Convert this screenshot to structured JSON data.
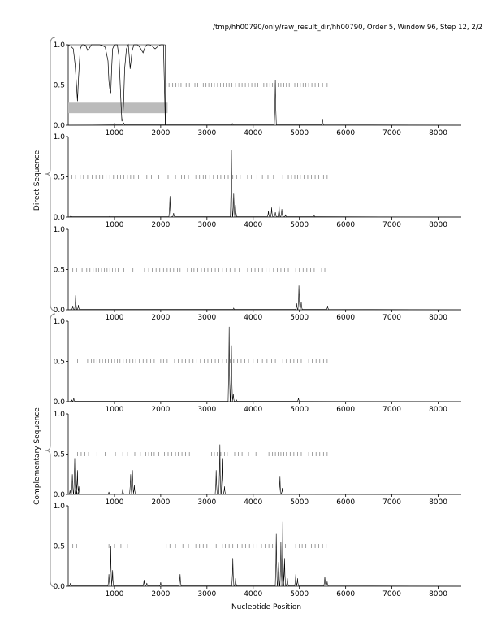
{
  "header": {
    "title": "/tmp/hh00790/only/raw_result_dir/hh00790, Order 5, Window 96, Step 12, 2/2"
  },
  "labels": {
    "direct": "Direct Sequence",
    "complementary": "Complementary Sequence",
    "xlabel": "Nucleotide Position"
  },
  "colors": {
    "line": "#000000",
    "tick_marks": "#777777",
    "highlight_band": "#bbbbbb",
    "brace": "#888888"
  },
  "chart_data": [
    {
      "type": "line",
      "group": "direct",
      "xlim": [
        0,
        8500
      ],
      "ylim": [
        0,
        1
      ],
      "xticks": [
        1000,
        2000,
        3000,
        4000,
        5000,
        6000,
        7000,
        8000
      ],
      "yticks": [
        0.0,
        0.5,
        1.0
      ],
      "ytick_labels": [
        "0.0",
        "0.5",
        "1.0"
      ],
      "inset": {
        "x": [
          0,
          60,
          110,
          150,
          180,
          200,
          220,
          260,
          300,
          340,
          380,
          420,
          460,
          500,
          560,
          620,
          680,
          740,
          800,
          860,
          880,
          900,
          920,
          940,
          960,
          1000,
          1060,
          1100,
          1140,
          1160,
          1180,
          1200,
          1220,
          1260,
          1300,
          1320,
          1340,
          1380,
          1420,
          1460,
          1500,
          1560,
          1620,
          1660,
          1700,
          1760,
          1820,
          1880,
          1940,
          2000,
          2060,
          2100
        ],
        "y": [
          1.0,
          0.98,
          0.95,
          0.75,
          0.5,
          0.3,
          0.55,
          0.95,
          1.0,
          1.0,
          0.99,
          0.93,
          0.96,
          1.0,
          1.0,
          1.0,
          1.0,
          0.99,
          0.97,
          0.8,
          0.55,
          0.45,
          0.4,
          0.7,
          0.95,
          1.0,
          1.0,
          0.85,
          0.3,
          0.05,
          0.08,
          0.3,
          0.7,
          0.95,
          1.0,
          0.85,
          0.7,
          0.92,
          1.0,
          1.0,
          1.0,
          0.96,
          0.9,
          0.97,
          1.0,
          1.0,
          0.98,
          0.95,
          0.98,
          1.0,
          1.0,
          0.0
        ],
        "band": [
          0.15,
          0.28
        ],
        "band_x": [
          0,
          2150
        ]
      },
      "peaks": [
        [
          1000,
          0.02
        ],
        [
          1200,
          0.03
        ],
        [
          3550,
          0.02
        ],
        [
          4480,
          0.56
        ],
        [
          5500,
          0.08
        ]
      ],
      "ticks_x": [
        2120,
        2180,
        2260,
        2330,
        2390,
        2440,
        2500,
        2550,
        2620,
        2680,
        2740,
        2800,
        2870,
        2920,
        2980,
        3040,
        3100,
        3160,
        3230,
        3290,
        3360,
        3420,
        3480,
        3540,
        3620,
        3690,
        3760,
        3830,
        3900,
        3970,
        4040,
        4100,
        4170,
        4230,
        4300,
        4360,
        4420,
        4480,
        4540,
        4600,
        4660,
        4720,
        4780,
        4840,
        4900,
        4960,
        5020,
        5080,
        5140,
        5200,
        5270,
        5340,
        5420,
        5500,
        5600
      ]
    },
    {
      "type": "line",
      "group": "direct",
      "xlim": [
        0,
        8500
      ],
      "ylim": [
        0,
        1
      ],
      "xticks": [
        1000,
        2000,
        3000,
        4000,
        5000,
        6000,
        7000,
        8000
      ],
      "yticks": [
        0.0,
        0.5,
        1.0
      ],
      "ytick_labels": [
        "0.0",
        "0.5",
        "1.0"
      ],
      "peaks": [
        [
          60,
          0.02
        ],
        [
          900,
          0.01
        ],
        [
          2200,
          0.26
        ],
        [
          2280,
          0.05
        ],
        [
          3530,
          0.83
        ],
        [
          3580,
          0.3
        ],
        [
          3620,
          0.15
        ],
        [
          4330,
          0.08
        ],
        [
          4400,
          0.12
        ],
        [
          4480,
          0.06
        ],
        [
          4560,
          0.15
        ],
        [
          4620,
          0.1
        ],
        [
          4700,
          0.03
        ],
        [
          5320,
          0.02
        ]
      ],
      "ticks_x": [
        80,
        160,
        260,
        330,
        420,
        520,
        600,
        680,
        750,
        820,
        900,
        980,
        1060,
        1130,
        1200,
        1280,
        1350,
        1420,
        1520,
        1700,
        1800,
        1960,
        2160,
        2320,
        2450,
        2520,
        2600,
        2680,
        2760,
        2840,
        2920,
        2980,
        3060,
        3140,
        3220,
        3300,
        3380,
        3460,
        3560,
        3640,
        3720,
        3800,
        3880,
        3960,
        4080,
        4200,
        4320,
        4440,
        4640,
        4760,
        4830,
        4900,
        4960,
        5020,
        5100,
        5180,
        5260,
        5340,
        5420,
        5520,
        5600
      ]
    },
    {
      "type": "line",
      "group": "direct",
      "xlim": [
        0,
        8500
      ],
      "ylim": [
        0,
        1
      ],
      "xticks": [
        1000,
        2000,
        3000,
        4000,
        5000,
        6000,
        7000,
        8000
      ],
      "yticks": [
        0.0,
        0.5,
        1.0
      ],
      "ytick_labels": [
        "0.0",
        "0.5",
        "1.0"
      ],
      "peaks": [
        [
          100,
          0.05
        ],
        [
          160,
          0.18
        ],
        [
          220,
          0.06
        ],
        [
          3580,
          0.02
        ],
        [
          4940,
          0.08
        ],
        [
          4990,
          0.3
        ],
        [
          5040,
          0.1
        ],
        [
          5610,
          0.05
        ]
      ],
      "ticks_x": [
        100,
        180,
        300,
        400,
        470,
        540,
        600,
        660,
        720,
        780,
        840,
        900,
        960,
        1020,
        1080,
        1200,
        1400,
        1650,
        1740,
        1820,
        1900,
        1980,
        2060,
        2140,
        2200,
        2280,
        2360,
        2420,
        2500,
        2580,
        2660,
        2720,
        2800,
        2880,
        2940,
        3020,
        3100,
        3180,
        3260,
        3340,
        3420,
        3500,
        3600,
        3700,
        3800,
        3880,
        3960,
        4040,
        4120,
        4200,
        4280,
        4360,
        4440,
        4520,
        4600,
        4680,
        4760,
        4840,
        4920,
        5000,
        5080,
        5160,
        5240,
        5320,
        5400,
        5480,
        5550
      ]
    },
    {
      "type": "line",
      "group": "complementary",
      "xlim": [
        0,
        8500
      ],
      "ylim": [
        0,
        1
      ],
      "xticks": [
        1000,
        2000,
        3000,
        4000,
        5000,
        6000,
        7000,
        8000
      ],
      "yticks": [
        0.0,
        0.5,
        1.0
      ],
      "ytick_labels": [
        "0.0",
        "0.5",
        "1.0"
      ],
      "peaks": [
        [
          80,
          0.02
        ],
        [
          120,
          0.05
        ],
        [
          3480,
          0.93
        ],
        [
          3530,
          0.7
        ],
        [
          3570,
          0.1
        ],
        [
          3640,
          0.02
        ],
        [
          4980,
          0.05
        ]
      ],
      "ticks_x": [
        200,
        420,
        500,
        560,
        620,
        680,
        740,
        800,
        870,
        940,
        1000,
        1060,
        1120,
        1190,
        1260,
        1330,
        1400,
        1460,
        1540,
        1620,
        1700,
        1780,
        1860,
        1940,
        2000,
        2060,
        2140,
        2220,
        2300,
        2380,
        2460,
        2540,
        2620,
        2700,
        2780,
        2860,
        2940,
        3020,
        3100,
        3180,
        3260,
        3340,
        3420,
        3500,
        3580,
        3660,
        3740,
        3820,
        3900,
        4000,
        4100,
        4200,
        4300,
        4400,
        4480,
        4560,
        4640,
        4720,
        4800,
        4880,
        4960,
        5040,
        5120,
        5200,
        5280,
        5360,
        5440,
        5520,
        5600
      ]
    },
    {
      "type": "line",
      "group": "complementary",
      "xlim": [
        0,
        8500
      ],
      "ylim": [
        0,
        1
      ],
      "xticks": [
        1000,
        2000,
        3000,
        4000,
        5000,
        6000,
        7000,
        8000
      ],
      "yticks": [
        0.0,
        0.5,
        1.0
      ],
      "ytick_labels": [
        "0.0",
        "0.5",
        "1.0"
      ],
      "peaks": [
        [
          40,
          0.05
        ],
        [
          90,
          0.25
        ],
        [
          140,
          0.45
        ],
        [
          170,
          0.2
        ],
        [
          200,
          0.3
        ],
        [
          230,
          0.1
        ],
        [
          880,
          0.03
        ],
        [
          1180,
          0.07
        ],
        [
          1350,
          0.25
        ],
        [
          1390,
          0.3
        ],
        [
          1430,
          0.12
        ],
        [
          3200,
          0.3
        ],
        [
          3280,
          0.62
        ],
        [
          3330,
          0.45
        ],
        [
          3380,
          0.1
        ],
        [
          4580,
          0.22
        ],
        [
          4630,
          0.08
        ]
      ],
      "ticks_x": [
        200,
        280,
        360,
        440,
        620,
        800,
        1020,
        1100,
        1180,
        1280,
        1440,
        1560,
        1680,
        1740,
        1800,
        1860,
        1960,
        2080,
        2160,
        2240,
        2320,
        2380,
        2460,
        2540,
        2620,
        3100,
        3160,
        3220,
        3300,
        3380,
        3440,
        3520,
        3600,
        3680,
        3760,
        3900,
        4060,
        4340,
        4420,
        4480,
        4540,
        4600,
        4660,
        4720,
        4800,
        4880,
        4960,
        5040,
        5120,
        5200,
        5280,
        5360,
        5440,
        5520,
        5600
      ]
    },
    {
      "type": "line",
      "group": "complementary",
      "xlim": [
        0,
        8500
      ],
      "ylim": [
        0,
        1
      ],
      "xticks": [
        1000,
        2000,
        3000,
        4000,
        5000,
        6000,
        7000,
        8000
      ],
      "yticks": [
        0.0,
        0.5,
        1.0
      ],
      "ytick_labels": [
        "0.0",
        "0.5",
        "1.0"
      ],
      "peaks": [
        [
          50,
          0.04
        ],
        [
          880,
          0.15
        ],
        [
          920,
          0.5
        ],
        [
          960,
          0.2
        ],
        [
          1640,
          0.08
        ],
        [
          1700,
          0.04
        ],
        [
          2000,
          0.05
        ],
        [
          2420,
          0.15
        ],
        [
          3560,
          0.35
        ],
        [
          3620,
          0.1
        ],
        [
          4500,
          0.65
        ],
        [
          4550,
          0.3
        ],
        [
          4600,
          0.55
        ],
        [
          4640,
          0.8
        ],
        [
          4680,
          0.35
        ],
        [
          4740,
          0.1
        ],
        [
          4920,
          0.15
        ],
        [
          4960,
          0.1
        ],
        [
          5550,
          0.12
        ],
        [
          5600,
          0.06
        ]
      ],
      "ticks_x": [
        100,
        180,
        880,
        1000,
        1140,
        1280,
        2120,
        2200,
        2320,
        2480,
        2600,
        2680,
        2760,
        2840,
        2920,
        3000,
        3200,
        3340,
        3400,
        3480,
        3560,
        3660,
        3760,
        3840,
        3920,
        4000,
        4080,
        4180,
        4260,
        4340,
        4420,
        4500,
        4700,
        4840,
        4920,
        5000,
        5060,
        5140,
        5260,
        5340,
        5420,
        5500,
        5580
      ]
    }
  ]
}
